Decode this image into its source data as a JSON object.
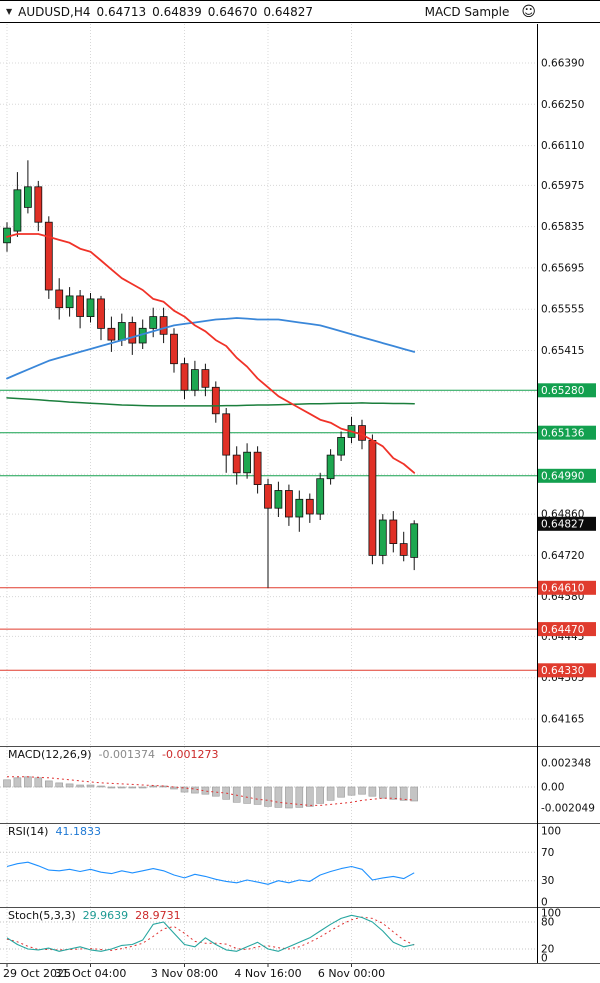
{
  "header": {
    "dropdown_icon": "▼",
    "symbol": "AUDUSD,H4",
    "open": "0.64713",
    "high": "0.64839",
    "low": "0.64670",
    "close": "0.64827",
    "expert_name": "MACD Sample",
    "smiley_icon": "☺"
  },
  "indicators": {
    "macd": {
      "name": "MACD(12,26,9)",
      "value1": "-0.001374",
      "value2": "-0.001273"
    },
    "rsi": {
      "name": "RSI(14)",
      "value1": "41.1833"
    },
    "stoch": {
      "name": "Stoch(5,3,3)",
      "value1": "29.9639",
      "value2": "28.9731"
    }
  },
  "colors": {
    "bull": "#1da750",
    "bear": "#e03026",
    "wick": "#111111",
    "ma_fast": "#f03228",
    "ma_mid": "#3a87d9",
    "ma_slow": "#1b7e3c",
    "sr_green": "#13a04f",
    "sr_red": "#e03b2e",
    "current_badge": "#0b0b0b",
    "macd_hist": "#c4c4c4",
    "macd_hist_stroke": "#9a9a9a",
    "macd_signal": "#e03131",
    "rsi_line": "#1e90ff",
    "stoch_main": "#27a6a0",
    "stoch_signal": "#e03131",
    "grid": "#d8d8d8",
    "level": "#c6c6c6",
    "separator": "#4d4d4d",
    "axis_line": "#000000",
    "axis_text": "#111111"
  },
  "chart_data": {
    "type": "candlestick",
    "title": "AUDUSD,H4",
    "symbol": "AUDUSD",
    "timeframe": "H4",
    "last_ohlc": {
      "o": 0.64713,
      "h": 0.64839,
      "l": 0.6467,
      "c": 0.64827
    },
    "price_axis": {
      "grid_labels": [
        "0.66390",
        "0.66250",
        "0.66110",
        "0.65975",
        "0.65835",
        "0.65695",
        "0.65555",
        "0.65415",
        "0.65275",
        "0.65135",
        "0.64995",
        "0.64860",
        "0.64720",
        "0.64580",
        "0.64445",
        "0.64305",
        "0.64165"
      ],
      "visible_range": [
        0.6407,
        0.6652
      ]
    },
    "time_axis": [
      {
        "text": "29 Oct 2025",
        "i": 0,
        "align": "start"
      },
      {
        "text": "31 Oct 04:00",
        "i": 8
      },
      {
        "text": "3 Nov 08:00",
        "i": 17
      },
      {
        "text": "4 Nov 16:00",
        "i": 25
      },
      {
        "text": "6 Nov 00:00",
        "i": 33
      }
    ],
    "sr_lines": [
      {
        "price": 0.6528,
        "label": "0.65280",
        "kind": "resistance",
        "color": "#13a04f"
      },
      {
        "price": 0.65136,
        "label": "0.65136",
        "kind": "resistance",
        "color": "#13a04f"
      },
      {
        "price": 0.6499,
        "label": "0.64990",
        "kind": "resistance",
        "color": "#13a04f"
      },
      {
        "price": 0.6461,
        "label": "0.64610",
        "kind": "support",
        "color": "#e03b2e"
      },
      {
        "price": 0.6447,
        "label": "0.64470",
        "kind": "support",
        "color": "#e03b2e"
      },
      {
        "price": 0.6433,
        "label": "0.64330",
        "kind": "support",
        "color": "#e03b2e"
      }
    ],
    "current_price": {
      "value": 0.64827,
      "label": "0.64827"
    },
    "candles": [
      {
        "o": 0.6578,
        "h": 0.6585,
        "l": 0.6575,
        "c": 0.6583
      },
      {
        "o": 0.6582,
        "h": 0.6602,
        "l": 0.658,
        "c": 0.6596
      },
      {
        "o": 0.659,
        "h": 0.6606,
        "l": 0.6588,
        "c": 0.6597
      },
      {
        "o": 0.6597,
        "h": 0.6599,
        "l": 0.6582,
        "c": 0.6585
      },
      {
        "o": 0.6585,
        "h": 0.6587,
        "l": 0.6559,
        "c": 0.6562
      },
      {
        "o": 0.6562,
        "h": 0.6566,
        "l": 0.6552,
        "c": 0.6556
      },
      {
        "o": 0.6556,
        "h": 0.6563,
        "l": 0.6553,
        "c": 0.656
      },
      {
        "o": 0.656,
        "h": 0.6562,
        "l": 0.6549,
        "c": 0.6553
      },
      {
        "o": 0.6553,
        "h": 0.6561,
        "l": 0.6551,
        "c": 0.6559
      },
      {
        "o": 0.6559,
        "h": 0.656,
        "l": 0.6545,
        "c": 0.6549
      },
      {
        "o": 0.6549,
        "h": 0.6553,
        "l": 0.6541,
        "c": 0.6545
      },
      {
        "o": 0.6545,
        "h": 0.6554,
        "l": 0.6543,
        "c": 0.6551
      },
      {
        "o": 0.6551,
        "h": 0.6553,
        "l": 0.654,
        "c": 0.6544
      },
      {
        "o": 0.6544,
        "h": 0.6552,
        "l": 0.6542,
        "c": 0.6549
      },
      {
        "o": 0.6549,
        "h": 0.6556,
        "l": 0.6546,
        "c": 0.6553
      },
      {
        "o": 0.6553,
        "h": 0.6556,
        "l": 0.6544,
        "c": 0.6547
      },
      {
        "o": 0.6547,
        "h": 0.6549,
        "l": 0.6534,
        "c": 0.6537
      },
      {
        "o": 0.6537,
        "h": 0.6539,
        "l": 0.6525,
        "c": 0.6528
      },
      {
        "o": 0.6528,
        "h": 0.6538,
        "l": 0.6526,
        "c": 0.6535
      },
      {
        "o": 0.6535,
        "h": 0.6537,
        "l": 0.6526,
        "c": 0.6529
      },
      {
        "o": 0.6529,
        "h": 0.6531,
        "l": 0.6517,
        "c": 0.652
      },
      {
        "o": 0.652,
        "h": 0.6522,
        "l": 0.65,
        "c": 0.6506
      },
      {
        "o": 0.6506,
        "h": 0.6509,
        "l": 0.6496,
        "c": 0.65
      },
      {
        "o": 0.65,
        "h": 0.651,
        "l": 0.6498,
        "c": 0.6507
      },
      {
        "o": 0.6507,
        "h": 0.6509,
        "l": 0.6493,
        "c": 0.6496
      },
      {
        "o": 0.6496,
        "h": 0.6498,
        "l": 0.6461,
        "c": 0.6488
      },
      {
        "o": 0.6488,
        "h": 0.6497,
        "l": 0.6485,
        "c": 0.6494
      },
      {
        "o": 0.6494,
        "h": 0.6496,
        "l": 0.6482,
        "c": 0.6485
      },
      {
        "o": 0.6485,
        "h": 0.6494,
        "l": 0.648,
        "c": 0.6491
      },
      {
        "o": 0.6491,
        "h": 0.6493,
        "l": 0.6483,
        "c": 0.6486
      },
      {
        "o": 0.6486,
        "h": 0.65,
        "l": 0.6484,
        "c": 0.6498
      },
      {
        "o": 0.6498,
        "h": 0.6508,
        "l": 0.6496,
        "c": 0.6506
      },
      {
        "o": 0.6506,
        "h": 0.6514,
        "l": 0.6504,
        "c": 0.6512
      },
      {
        "o": 0.6512,
        "h": 0.6519,
        "l": 0.651,
        "c": 0.6516
      },
      {
        "o": 0.6516,
        "h": 0.6518,
        "l": 0.6508,
        "c": 0.6511
      },
      {
        "o": 0.6511,
        "h": 0.6513,
        "l": 0.6469,
        "c": 0.6472
      },
      {
        "o": 0.6472,
        "h": 0.6486,
        "l": 0.6469,
        "c": 0.6484
      },
      {
        "o": 0.6484,
        "h": 0.6487,
        "l": 0.6473,
        "c": 0.6476
      },
      {
        "o": 0.6476,
        "h": 0.648,
        "l": 0.647,
        "c": 0.6472
      },
      {
        "o": 0.64713,
        "h": 0.64839,
        "l": 0.6467,
        "c": 0.64827
      }
    ],
    "ma_fast": [
      0.658,
      0.6581,
      0.6581,
      0.6581,
      0.658,
      0.6579,
      0.6578,
      0.6576,
      0.6575,
      0.6572,
      0.6569,
      0.6566,
      0.6564,
      0.6562,
      0.6559,
      0.6558,
      0.6555,
      0.6553,
      0.655,
      0.6548,
      0.6545,
      0.6543,
      0.6539,
      0.6536,
      0.6532,
      0.6529,
      0.6526,
      0.6524,
      0.6522,
      0.652,
      0.6518,
      0.6517,
      0.6515,
      0.6514,
      0.6513,
      0.6511,
      0.6509,
      0.6505,
      0.6503,
      0.65
    ],
    "ma_mid": [
      0.6532,
      0.65335,
      0.6535,
      0.65365,
      0.6538,
      0.6539,
      0.654,
      0.6541,
      0.6542,
      0.6543,
      0.6544,
      0.6545,
      0.6546,
      0.6547,
      0.6548,
      0.6549,
      0.655,
      0.65505,
      0.6551,
      0.65515,
      0.6552,
      0.65522,
      0.65525,
      0.65523,
      0.6552,
      0.6552,
      0.6552,
      0.65515,
      0.6551,
      0.65505,
      0.655,
      0.6549,
      0.6548,
      0.6547,
      0.6546,
      0.6545,
      0.6544,
      0.6543,
      0.6542,
      0.6541
    ],
    "ma_slow": [
      0.65254,
      0.65252,
      0.6525,
      0.65248,
      0.65245,
      0.65243,
      0.6524,
      0.65238,
      0.65236,
      0.65234,
      0.65232,
      0.6523,
      0.65229,
      0.65228,
      0.65227,
      0.65227,
      0.65227,
      0.65227,
      0.65227,
      0.65227,
      0.65227,
      0.65228,
      0.65228,
      0.65229,
      0.6523,
      0.6523,
      0.65231,
      0.65232,
      0.65233,
      0.65234,
      0.65234,
      0.65235,
      0.65236,
      0.65236,
      0.65237,
      0.65236,
      0.65236,
      0.65235,
      0.65235,
      0.65234
    ],
    "macd": {
      "histogram": [
        0.0007,
        0.0009,
        0.001,
        0.0009,
        0.0006,
        0.0004,
        0.0003,
        0.0002,
        0.0002,
        0.0001,
        0,
        -0.0001,
        -0.0001,
        0,
        0.0001,
        0.0001,
        -0.0002,
        -0.0005,
        -0.0006,
        -0.0007,
        -0.0009,
        -0.0012,
        -0.0015,
        -0.0016,
        -0.0017,
        -0.0019,
        -0.002,
        -0.00205,
        -0.002,
        -0.0019,
        -0.0016,
        -0.0013,
        -0.001,
        -0.0008,
        -0.0007,
        -0.0009,
        -0.0011,
        -0.0012,
        -0.0013,
        -0.001374
      ],
      "signal": [
        0.001,
        0.001,
        0.001,
        0.00095,
        0.0009,
        0.0008,
        0.0007,
        0.0006,
        0.0005,
        0.0004,
        0.00035,
        0.0003,
        0.00025,
        0.0002,
        0.00015,
        0.0001,
        0,
        -0.0001,
        -0.0002,
        -0.0004,
        -0.0005,
        -0.0006,
        -0.0008,
        -0.001,
        -0.0012,
        -0.0013,
        -0.0015,
        -0.0016,
        -0.0017,
        -0.0018,
        -0.0018,
        -0.0017,
        -0.0016,
        -0.0015,
        -0.0013,
        -0.0012,
        -0.0011,
        -0.0011,
        -0.0012,
        -0.001273
      ]
    },
    "rsi": [
      50,
      54,
      56,
      51,
      45,
      44,
      46,
      43,
      46,
      42,
      40,
      44,
      41,
      44,
      47,
      44,
      38,
      34,
      39,
      36,
      32,
      29,
      27,
      31,
      28,
      25,
      30,
      27,
      31,
      29,
      38,
      43,
      47,
      50,
      46,
      31,
      34,
      36,
      33,
      41.1833
    ],
    "stoch": {
      "k": [
        45,
        30,
        20,
        18,
        22,
        15,
        20,
        25,
        18,
        15,
        20,
        28,
        30,
        40,
        75,
        80,
        55,
        30,
        25,
        45,
        30,
        18,
        15,
        25,
        35,
        20,
        15,
        25,
        35,
        45,
        60,
        75,
        88,
        95,
        90,
        80,
        60,
        35,
        25,
        29.9639
      ],
      "d": [
        42,
        36,
        26,
        19,
        19,
        18,
        19,
        20,
        21,
        19,
        17,
        21,
        26,
        33,
        48,
        65,
        70,
        55,
        37,
        33,
        33,
        31,
        21,
        19,
        25,
        27,
        23,
        20,
        25,
        35,
        47,
        61,
        74,
        85,
        91,
        88,
        77,
        58,
        40,
        28.9731
      ]
    },
    "indicator_axes": {
      "macd": [
        {
          "v": 0.002348,
          "t": "0.002348"
        },
        {
          "v": 0,
          "t": "0.00"
        },
        {
          "v": -0.002049,
          "t": "-0.002049"
        }
      ],
      "rsi": [
        {
          "v": 100,
          "t": "100"
        },
        {
          "v": 70,
          "t": "70"
        },
        {
          "v": 30,
          "t": "30"
        },
        {
          "v": 0,
          "t": "0"
        }
      ],
      "stoch": [
        {
          "v": 100,
          "t": "100"
        },
        {
          "v": 80,
          "t": "80"
        },
        {
          "v": 20,
          "t": "20"
        },
        {
          "v": 0,
          "t": "0"
        }
      ]
    },
    "levels": {
      "rsi": [
        70,
        30
      ],
      "stoch": [
        80,
        20
      ]
    }
  }
}
